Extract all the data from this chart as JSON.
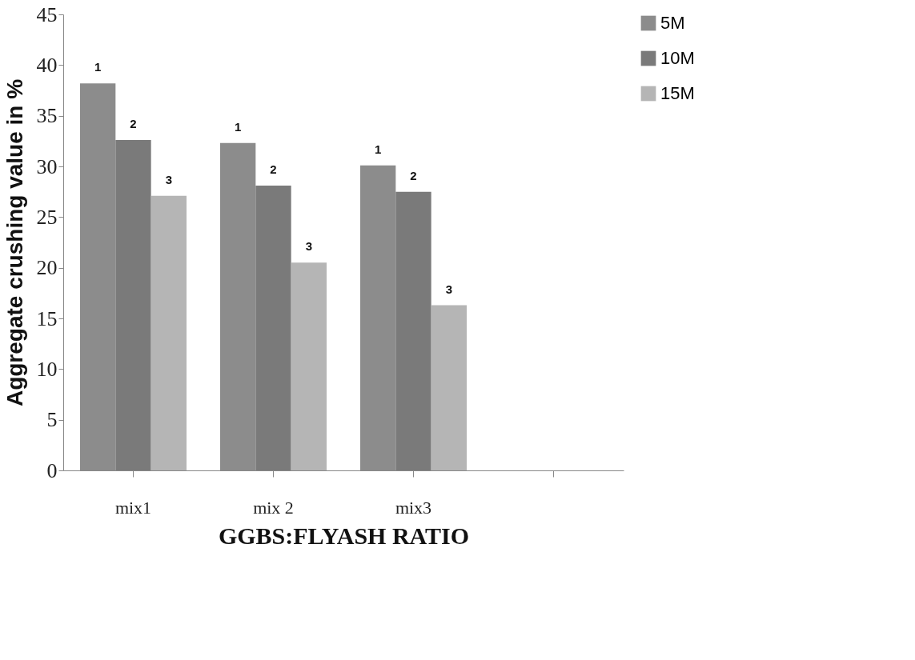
{
  "chart_data": {
    "type": "bar",
    "xlabel": "GGBS:FLYASH RATIO",
    "ylabel": "Aggregate crushing value in %",
    "categories": [
      "mix1",
      "mix 2",
      "mix3",
      null
    ],
    "series": [
      {
        "name": "5M",
        "color": "#8c8c8c",
        "values": [
          38.2,
          32.3,
          30.1,
          null
        ]
      },
      {
        "name": "10M",
        "color": "#7a7a7a",
        "values": [
          32.6,
          28.1,
          27.5,
          null
        ]
      },
      {
        "name": "15M",
        "color": "#b5b5b5",
        "values": [
          27.1,
          20.5,
          16.3,
          null
        ]
      }
    ],
    "annotations": [
      "1",
      "2",
      "3",
      "1",
      "2",
      "3",
      "1",
      "2",
      "3"
    ],
    "ylim": [
      0,
      45
    ],
    "yticks": [
      0,
      5,
      10,
      15,
      20,
      25,
      30,
      35,
      40,
      45
    ],
    "grid": false,
    "legend": "right"
  }
}
